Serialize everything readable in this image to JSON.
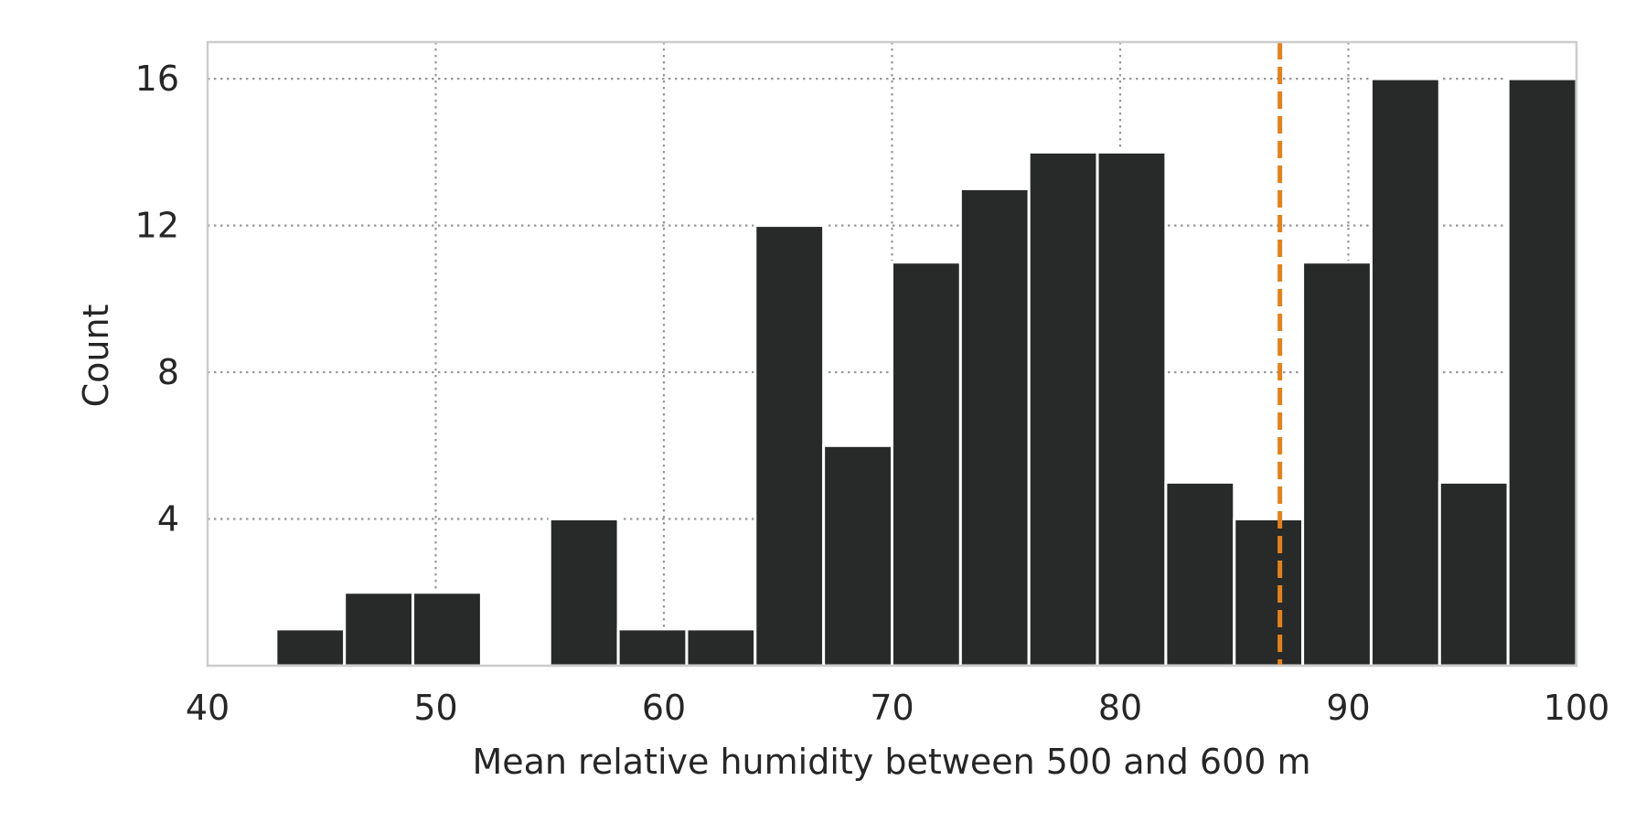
{
  "chart_data": {
    "type": "bar",
    "xlabel": "Mean relative humidity between 500 and 600 m",
    "ylabel": "Count",
    "xlim": [
      40,
      100
    ],
    "ylim": [
      0,
      17
    ],
    "x_ticks": [
      40,
      50,
      60,
      70,
      80,
      90,
      100
    ],
    "x_tick_labels": [
      "40",
      "50",
      "60",
      "70",
      "80",
      "90",
      "100"
    ],
    "y_ticks": [
      4,
      8,
      12,
      16
    ],
    "y_tick_labels": [
      "4",
      "8",
      "12",
      "16"
    ],
    "bins": [
      {
        "start": 43,
        "end": 46,
        "count": 1
      },
      {
        "start": 46,
        "end": 49,
        "count": 2
      },
      {
        "start": 49,
        "end": 52,
        "count": 2
      },
      {
        "start": 52,
        "end": 55,
        "count": 0
      },
      {
        "start": 55,
        "end": 58,
        "count": 4
      },
      {
        "start": 58,
        "end": 61,
        "count": 1
      },
      {
        "start": 61,
        "end": 64,
        "count": 1
      },
      {
        "start": 64,
        "end": 67,
        "count": 12
      },
      {
        "start": 67,
        "end": 70,
        "count": 6
      },
      {
        "start": 70,
        "end": 73,
        "count": 11
      },
      {
        "start": 73,
        "end": 76,
        "count": 13
      },
      {
        "start": 76,
        "end": 79,
        "count": 14
      },
      {
        "start": 79,
        "end": 82,
        "count": 14
      },
      {
        "start": 82,
        "end": 85,
        "count": 5
      },
      {
        "start": 85,
        "end": 88,
        "count": 4
      },
      {
        "start": 88,
        "end": 91,
        "count": 11
      },
      {
        "start": 91,
        "end": 94,
        "count": 16
      },
      {
        "start": 94,
        "end": 97,
        "count": 5
      },
      {
        "start": 97,
        "end": 100,
        "count": 16
      }
    ],
    "reference_line": {
      "x": 87,
      "style": "dashed",
      "color": "#e0821e"
    },
    "bar_color": "#282a29",
    "grid": true,
    "grid_style": "dotted",
    "legend": "none"
  }
}
